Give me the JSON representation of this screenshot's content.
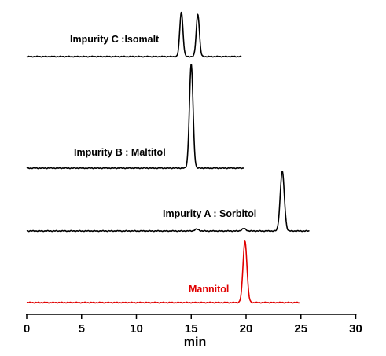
{
  "chart_data": {
    "type": "line",
    "title": "",
    "xlabel": "min",
    "ylabel": "",
    "xlim": [
      0,
      30
    ],
    "xticks": [
      "0",
      "5",
      "10",
      "15",
      "20",
      "25",
      "30"
    ],
    "grid": false,
    "series": [
      {
        "name": "Impurity C :Isomalt",
        "color": "#000000",
        "x_range": [
          0,
          19.6
        ],
        "peaks": [
          {
            "rt": 14.1,
            "height": 1.0
          },
          {
            "rt": 15.6,
            "height": 0.95
          }
        ]
      },
      {
        "name": "Impurity B : Maltitol",
        "color": "#000000",
        "x_range": [
          0,
          19.8
        ],
        "peaks": [
          {
            "rt": 15.0,
            "height": 1.0
          }
        ]
      },
      {
        "name": "Impurity A : Sorbitol",
        "color": "#000000",
        "x_range": [
          0,
          25.8
        ],
        "peaks": [
          {
            "rt": 15.5,
            "height": 0.03
          },
          {
            "rt": 19.8,
            "height": 0.04
          },
          {
            "rt": 23.3,
            "height": 1.0
          }
        ]
      },
      {
        "name": "Mannitol",
        "color": "#e00000",
        "x_range": [
          0,
          24.9
        ],
        "peaks": [
          {
            "rt": 19.9,
            "height": 1.0
          }
        ]
      }
    ]
  }
}
